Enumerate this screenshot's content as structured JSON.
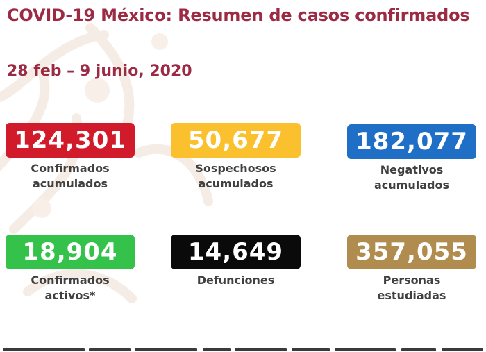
{
  "title": "COVID-19 México: Resumen de casos confirmados",
  "date_range": "28 feb – 9 junio, 2020",
  "colors": {
    "title": "#9c2a45",
    "confirmados": "#d11a2a",
    "sospechosos": "#fbc02d",
    "negativos": "#1f6fc6",
    "activos": "#34c24a",
    "defunciones": "#0a0a0a",
    "estudiadas": "#b08c4e"
  },
  "stats": [
    {
      "value": "124,301",
      "label_line1": "Confirmados",
      "label_line2": "acumulados",
      "color": "#d11a2a"
    },
    {
      "value": "50,677",
      "label_line1": "Sospechosos",
      "label_line2": "acumulados",
      "color": "#fbc02d"
    },
    {
      "value": "182,077",
      "label_line1": "Negativos",
      "label_line2": "acumulados",
      "color": "#1f6fc6"
    },
    {
      "value": "18,904",
      "label_line1": "Confirmados",
      "label_line2": "activos*",
      "color": "#34c24a"
    },
    {
      "value": "14,649",
      "label_line1": "Defunciones",
      "label_line2": "",
      "color": "#0a0a0a"
    },
    {
      "value": "357,055",
      "label_line1": "Personas",
      "label_line2": "estudiadas",
      "color": "#b08c4e"
    }
  ]
}
